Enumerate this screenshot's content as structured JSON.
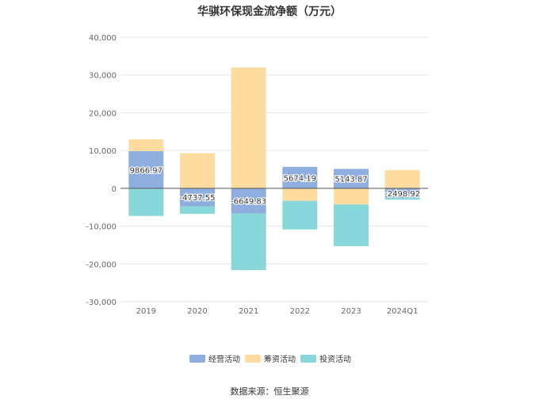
{
  "chart_data": {
    "type": "bar",
    "stacked": true,
    "title": "华骐环保现金流净额（万元）",
    "categories": [
      "2019",
      "2020",
      "2021",
      "2022",
      "2023",
      "2024Q1"
    ],
    "series": [
      {
        "name": "经营活动",
        "color": "#8eaee0",
        "values": [
          9866.97,
          -4737.55,
          -6649.83,
          5674.19,
          5143.87,
          -2498.92
        ]
      },
      {
        "name": "筹资活动",
        "color": "#fedb9f",
        "values": [
          3100,
          9300,
          32000,
          -3300,
          -4300,
          4800
        ]
      },
      {
        "name": "投资活动",
        "color": "#88d8db",
        "values": [
          -7300,
          -2000,
          -15000,
          -7600,
          -11000,
          -500
        ]
      }
    ],
    "data_labels": [
      "9866.97",
      "-4737.55",
      "-6649.83",
      "5674.19",
      "5143.87",
      "-2498.92"
    ],
    "ylim": [
      -30000,
      40000
    ],
    "yticks": [
      40000,
      30000,
      20000,
      10000,
      0,
      -10000,
      -20000,
      -30000
    ],
    "ytick_labels": [
      "40,000",
      "30,000",
      "20,000",
      "10,000",
      "0",
      "-10,000",
      "-20,000",
      "-30,000"
    ],
    "grid": true,
    "legend_position": "bottom"
  },
  "source": "数据来源：恒生聚源"
}
